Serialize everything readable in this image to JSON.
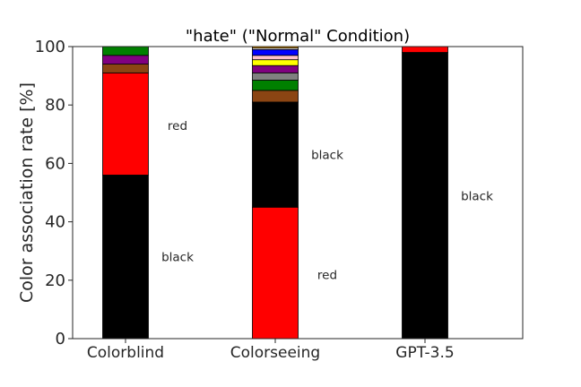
{
  "chart_data": {
    "type": "bar",
    "stacked": true,
    "title": "\"hate\" (\"Normal\" Condition)",
    "xlabel": "",
    "ylabel": "Color association rate [%]",
    "ylim": [
      0,
      100
    ],
    "yticks": [
      0,
      20,
      40,
      60,
      80,
      100
    ],
    "grid": false,
    "categories": [
      "Colorblind",
      "Colorseeing",
      "GPT-3.5"
    ],
    "stacks": [
      {
        "category": "Colorblind",
        "segments": [
          {
            "color": "#000000",
            "value": 56
          },
          {
            "color": "#ff0000",
            "value": 35
          },
          {
            "color": "#8b4513",
            "value": 3
          },
          {
            "color": "#800080",
            "value": 3
          },
          {
            "color": "#008000",
            "value": 3
          }
        ]
      },
      {
        "category": "Colorseeing",
        "segments": [
          {
            "color": "#ff0000",
            "value": 45
          },
          {
            "color": "#000000",
            "value": 36
          },
          {
            "color": "#8b4513",
            "value": 4
          },
          {
            "color": "#008000",
            "value": 3.5
          },
          {
            "color": "#808080",
            "value": 2.5
          },
          {
            "color": "#800080",
            "value": 2.5
          },
          {
            "color": "#ffff00",
            "value": 2
          },
          {
            "color": "#ffc0cb",
            "value": 1.5
          },
          {
            "color": "#0000ff",
            "value": 2
          },
          {
            "color": "#ffffff",
            "value": 0.5
          },
          {
            "color": "#ffa500",
            "value": 0.5
          }
        ]
      },
      {
        "category": "GPT-3.5",
        "segments": [
          {
            "color": "#000000",
            "value": 98
          },
          {
            "color": "#ff0000",
            "value": 2
          }
        ]
      }
    ],
    "annotations": [
      {
        "category": "Colorblind",
        "text": "red",
        "y": 73
      },
      {
        "category": "Colorblind",
        "text": "black",
        "y": 28
      },
      {
        "category": "Colorseeing",
        "text": "black",
        "y": 63
      },
      {
        "category": "Colorseeing",
        "text": "red",
        "y": 22
      },
      {
        "category": "GPT-3.5",
        "text": "black",
        "y": 49
      }
    ]
  }
}
